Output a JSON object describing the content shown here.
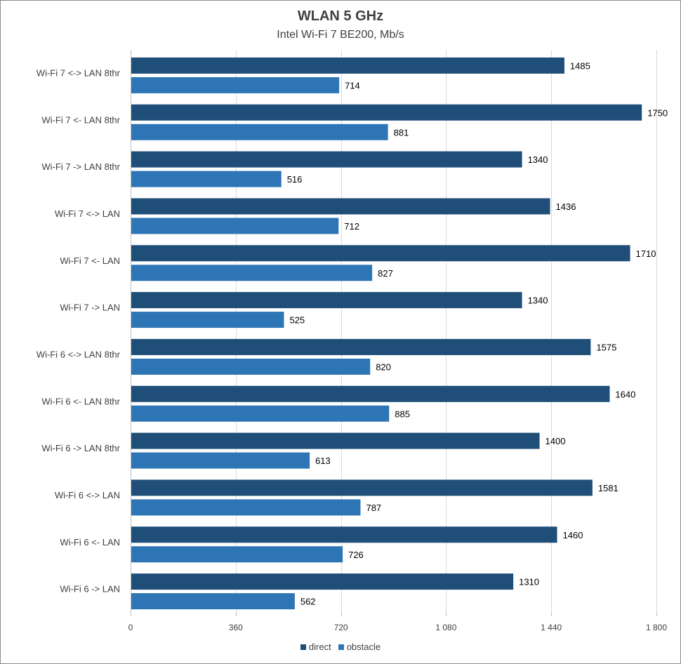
{
  "chart_data": {
    "type": "bar",
    "orientation": "horizontal",
    "title": "WLAN 5 GHz",
    "subtitle": "Intel Wi-Fi 7 BE200, Mb/s",
    "categories": [
      "Wi-Fi 7 <-> LAN 8thr",
      "Wi-Fi 7 <- LAN 8thr",
      "Wi-Fi 7 -> LAN 8thr",
      "Wi-Fi 7 <-> LAN",
      "Wi-Fi 7 <- LAN",
      "Wi-Fi 7 -> LAN",
      "Wi-Fi 6 <-> LAN 8thr",
      "Wi-Fi 6 <- LAN 8thr",
      "Wi-Fi 6 -> LAN 8thr",
      "Wi-Fi 6 <-> LAN",
      "Wi-Fi 6 <- LAN",
      "Wi-Fi 6 -> LAN"
    ],
    "series": [
      {
        "name": "direct",
        "color": "#1f4e79",
        "values": [
          1485,
          1750,
          1340,
          1436,
          1710,
          1340,
          1575,
          1640,
          1400,
          1581,
          1460,
          1310
        ]
      },
      {
        "name": "obstacle",
        "color": "#2e75b6",
        "values": [
          714,
          881,
          516,
          712,
          827,
          525,
          820,
          885,
          613,
          787,
          726,
          562
        ]
      }
    ],
    "xlim": [
      0,
      1800
    ],
    "xticks": [
      0,
      360,
      720,
      1080,
      1440,
      1800
    ],
    "xtick_labels": [
      "0",
      "360",
      "720",
      "1 080",
      "1 440",
      "1 800"
    ],
    "grid": true,
    "legend": "bottom",
    "xlabel": "",
    "ylabel": ""
  }
}
